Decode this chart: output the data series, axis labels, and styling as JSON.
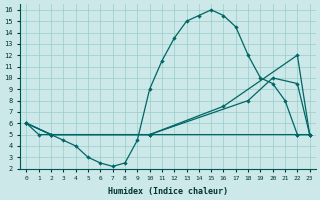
{
  "xlabel": "Humidex (Indice chaleur)",
  "background_color": "#cce8e8",
  "line_color": "#006666",
  "grid_color": "#99cccc",
  "xlim": [
    -0.5,
    23.5
  ],
  "ylim": [
    2,
    16.5
  ],
  "xticks": [
    0,
    1,
    2,
    3,
    4,
    5,
    6,
    7,
    8,
    9,
    10,
    11,
    12,
    13,
    14,
    15,
    16,
    17,
    18,
    19,
    20,
    21,
    22,
    23
  ],
  "yticks": [
    2,
    3,
    4,
    5,
    6,
    7,
    8,
    9,
    10,
    11,
    12,
    13,
    14,
    15,
    16
  ],
  "line1_x": [
    0,
    1,
    2,
    3,
    4,
    5,
    6,
    7,
    8,
    9,
    10,
    11,
    12,
    13,
    14,
    15,
    16,
    17,
    18,
    19,
    20,
    21,
    22,
    23
  ],
  "line1_y": [
    6,
    5,
    5,
    4.5,
    4,
    3,
    2.5,
    2.2,
    2.5,
    4.5,
    9,
    11.5,
    13.5,
    15,
    15.5,
    16,
    15.5,
    14.5,
    12,
    10,
    9.5,
    8,
    5,
    5
  ],
  "line2_x": [
    0,
    2,
    10,
    22,
    23
  ],
  "line2_y": [
    6,
    5,
    5,
    5,
    5
  ],
  "line3_x": [
    0,
    2,
    10,
    18,
    20,
    22,
    23
  ],
  "line3_y": [
    6,
    5,
    5,
    8,
    10,
    9.5,
    5
  ],
  "line4_x": [
    0,
    2,
    10,
    16,
    22,
    23
  ],
  "line4_y": [
    6,
    5,
    5,
    7.5,
    12,
    5
  ]
}
